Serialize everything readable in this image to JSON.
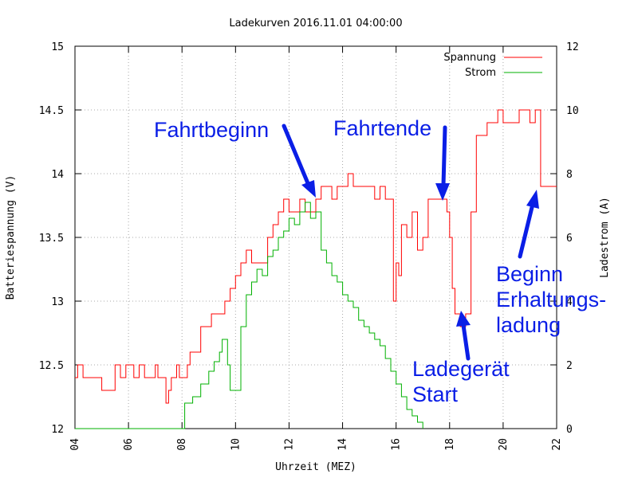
{
  "chart_data": {
    "type": "line",
    "title": "Ladekurven 2016.11.01 04:00:00",
    "xlabel": "Uhrzeit (MEZ)",
    "ylabel_left": "Batteriespannung (V)",
    "ylabel_right": "Ladestrom (A)",
    "xlim": [
      4,
      22
    ],
    "ylim_left": [
      12,
      15
    ],
    "ylim_right": [
      0,
      12
    ],
    "x_ticks": [
      "04",
      "06",
      "08",
      "10",
      "12",
      "14",
      "16",
      "18",
      "20",
      "22"
    ],
    "y_left_ticks": [
      "12",
      "12.5",
      "13",
      "13.5",
      "14",
      "14.5",
      "15"
    ],
    "y_right_ticks": [
      "0",
      "2",
      "4",
      "6",
      "8",
      "10",
      "12"
    ],
    "grid": true,
    "legend": "top-right",
    "colors": {
      "Spannung": "#ff0000",
      "Strom": "#00b000",
      "annotation": "#0a1ee6"
    },
    "series": [
      {
        "name": "Spannung",
        "axis": "left",
        "x": [
          4.0,
          4.1,
          4.3,
          4.8,
          5.0,
          5.2,
          5.5,
          5.7,
          5.9,
          6.2,
          6.4,
          6.6,
          6.8,
          7.0,
          7.1,
          7.2,
          7.3,
          7.35,
          7.4,
          7.5,
          7.6,
          7.8,
          7.9,
          8.0,
          8.1,
          8.2,
          8.3,
          8.5,
          8.7,
          8.9,
          9.1,
          9.3,
          9.5,
          9.6,
          9.8,
          10.0,
          10.2,
          10.4,
          10.6,
          10.8,
          11.0,
          11.2,
          11.4,
          11.6,
          11.8,
          12.0,
          12.2,
          12.4,
          12.6,
          12.8,
          13.0,
          13.2,
          13.4,
          13.6,
          13.8,
          14.0,
          14.2,
          14.4,
          14.6,
          14.8,
          15.0,
          15.2,
          15.4,
          15.6,
          15.8,
          15.9,
          16.0,
          16.1,
          16.2,
          16.4,
          16.6,
          16.8,
          17.0,
          17.2,
          17.4,
          17.6,
          17.8,
          17.9,
          18.0,
          18.1,
          18.2,
          18.3,
          18.4,
          18.6,
          18.8,
          19.0,
          19.2,
          19.4,
          19.6,
          19.8,
          20.0,
          20.2,
          20.4,
          20.6,
          20.8,
          21.0,
          21.2,
          21.4,
          21.6,
          22.0
        ],
        "y": [
          12.4,
          12.5,
          12.4,
          12.4,
          12.3,
          12.3,
          12.5,
          12.4,
          12.5,
          12.4,
          12.5,
          12.4,
          12.4,
          12.5,
          12.4,
          12.4,
          12.4,
          12.4,
          12.2,
          12.3,
          12.4,
          12.5,
          12.4,
          12.4,
          12.4,
          12.5,
          12.6,
          12.6,
          12.8,
          12.8,
          12.9,
          12.9,
          12.9,
          13.0,
          13.1,
          13.2,
          13.3,
          13.4,
          13.3,
          13.3,
          13.3,
          13.5,
          13.6,
          13.7,
          13.8,
          13.7,
          13.7,
          13.8,
          13.7,
          13.7,
          13.8,
          13.9,
          13.9,
          13.8,
          13.9,
          13.9,
          14.0,
          13.9,
          13.9,
          13.9,
          13.9,
          13.8,
          13.9,
          13.8,
          13.8,
          13.0,
          13.3,
          13.2,
          13.6,
          13.5,
          13.7,
          13.4,
          13.5,
          13.8,
          13.8,
          13.8,
          13.8,
          13.7,
          13.5,
          13.1,
          12.9,
          12.9,
          12.8,
          12.9,
          13.7,
          14.3,
          14.3,
          14.4,
          14.4,
          14.5,
          14.4,
          14.4,
          14.4,
          14.5,
          14.5,
          14.4,
          14.5,
          13.9,
          13.9,
          13.9
        ]
      },
      {
        "name": "Strom",
        "axis": "right",
        "x": [
          4.0,
          7.8,
          8.1,
          8.4,
          8.7,
          9.0,
          9.2,
          9.4,
          9.5,
          9.7,
          9.8,
          10.0,
          10.2,
          10.4,
          10.6,
          10.8,
          11.0,
          11.2,
          11.4,
          11.6,
          11.8,
          12.0,
          12.2,
          12.4,
          12.6,
          12.8,
          13.0,
          13.2,
          13.4,
          13.6,
          13.8,
          14.0,
          14.2,
          14.4,
          14.6,
          14.8,
          15.0,
          15.2,
          15.4,
          15.6,
          15.8,
          16.0,
          16.2,
          16.4,
          16.6,
          16.8,
          17.0
        ],
        "y": [
          0,
          0,
          0.8,
          1.0,
          1.4,
          1.8,
          2.1,
          2.4,
          2.8,
          2.0,
          1.2,
          1.2,
          3.2,
          4.2,
          4.6,
          5.0,
          4.8,
          5.4,
          5.6,
          6.0,
          6.2,
          6.6,
          6.4,
          6.8,
          7.1,
          6.6,
          6.8,
          5.6,
          5.2,
          4.8,
          4.6,
          4.2,
          4.0,
          3.8,
          3.4,
          3.2,
          3.0,
          2.8,
          2.6,
          2.2,
          1.8,
          1.4,
          1.0,
          0.6,
          0.4,
          0.2,
          0.0
        ]
      }
    ],
    "annotations": [
      {
        "text": "Fahrtbeginn",
        "x": 13.0,
        "y": 13.8
      },
      {
        "text": "Fahrtende",
        "x": 17.7,
        "y": 13.8
      },
      {
        "text": "Ladegerät",
        "x": 18.3,
        "y": 12.8
      },
      {
        "text": "Start",
        "x": 18.3,
        "y": 12.8
      },
      {
        "text": "Beginn",
        "x": 21.3,
        "y": 13.9
      },
      {
        "text": "Erhaltungs-",
        "x": 21.3,
        "y": 13.9
      },
      {
        "text": "ladung",
        "x": 21.3,
        "y": 13.9
      }
    ]
  }
}
